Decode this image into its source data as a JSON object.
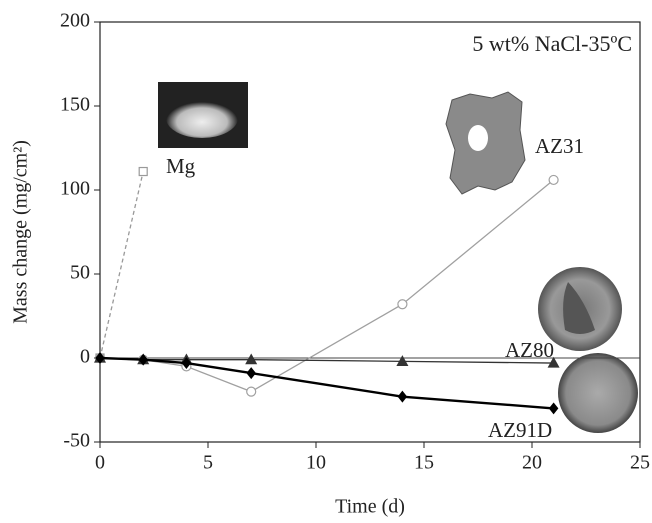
{
  "chart_data": {
    "type": "line",
    "annotation": "5 wt% NaCl-35ºC",
    "x_label": "Time (d)",
    "y_label": "Mass change (mg/cm²)",
    "xlim": [
      0,
      25
    ],
    "xticks": [
      0,
      5,
      10,
      15,
      20,
      25
    ],
    "ylim": [
      -50,
      200
    ],
    "yticks": [
      -50,
      0,
      50,
      100,
      150,
      200
    ],
    "grid": false,
    "series": [
      {
        "name": "Mg",
        "color": "#999999",
        "marker": "square",
        "filled": false,
        "dashed": true,
        "x": [
          0,
          2
        ],
        "values": [
          0,
          111
        ]
      },
      {
        "name": "AZ31",
        "color": "#a0a0a0",
        "marker": "circle",
        "filled": false,
        "dashed": false,
        "x": [
          0,
          2,
          4,
          7,
          14,
          21
        ],
        "values": [
          0,
          -1,
          -5,
          -20,
          32,
          106
        ]
      },
      {
        "name": "AZ80",
        "color": "#333333",
        "marker": "triangle",
        "filled": true,
        "dashed": false,
        "x": [
          0,
          2,
          4,
          7,
          14,
          21
        ],
        "values": [
          0,
          -1,
          -1,
          -1,
          -2,
          -3
        ]
      },
      {
        "name": "AZ91D",
        "color": "#000000",
        "marker": "diamond",
        "filled": true,
        "dashed": false,
        "x": [
          0,
          2,
          4,
          7,
          14,
          21
        ],
        "values": [
          0,
          -1,
          -3,
          -9,
          -23,
          -30
        ]
      }
    ]
  }
}
